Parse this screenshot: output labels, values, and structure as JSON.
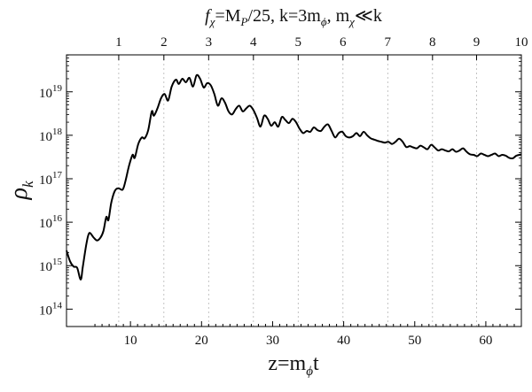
{
  "chart_data": {
    "type": "line",
    "top_title_parts": [
      "f",
      "χ",
      "=M",
      "P",
      "/25, k=3m",
      "ϕ",
      ", m",
      "χ",
      "≪k"
    ],
    "xlabel_parts": [
      "z=m",
      "ϕ",
      "t"
    ],
    "ylabel_parts": [
      "ρ",
      "k"
    ],
    "xlim": [
      1,
      65
    ],
    "ylim_log10": [
      13.6,
      19.85
    ],
    "x_ticks": [
      10,
      20,
      30,
      40,
      50,
      60
    ],
    "y_ticks": [
      {
        "exp": 14,
        "base": "10",
        "power": "14"
      },
      {
        "exp": 15,
        "base": "10",
        "power": "15"
      },
      {
        "exp": 16,
        "base": "10",
        "power": "16"
      },
      {
        "exp": 17,
        "base": "10",
        "power": "17"
      },
      {
        "exp": 18,
        "base": "10",
        "power": "18"
      },
      {
        "exp": 19,
        "base": "10",
        "power": "19"
      }
    ],
    "top_ticks": [
      {
        "label": "1",
        "z": 8.35
      },
      {
        "label": "2",
        "z": 14.7
      },
      {
        "label": "3",
        "z": 21.0
      },
      {
        "label": "4",
        "z": 27.3
      },
      {
        "label": "5",
        "z": 33.6
      },
      {
        "label": "6",
        "z": 39.9
      },
      {
        "label": "7",
        "z": 46.2
      },
      {
        "label": "8",
        "z": 52.5
      },
      {
        "label": "9",
        "z": 58.7
      },
      {
        "label": "10",
        "z": 65.0
      }
    ],
    "series": [
      {
        "color": "#000000",
        "points": [
          [
            1.0,
            15.35
          ],
          [
            1.5,
            15.1
          ],
          [
            2.0,
            14.98
          ],
          [
            2.5,
            14.95
          ],
          [
            3.0,
            14.68
          ],
          [
            3.3,
            14.98
          ],
          [
            3.8,
            15.5
          ],
          [
            4.2,
            15.75
          ],
          [
            4.8,
            15.65
          ],
          [
            5.3,
            15.58
          ],
          [
            5.8,
            15.65
          ],
          [
            6.2,
            15.8
          ],
          [
            6.6,
            16.12
          ],
          [
            6.9,
            16.05
          ],
          [
            7.3,
            16.45
          ],
          [
            7.8,
            16.72
          ],
          [
            8.3,
            16.78
          ],
          [
            8.9,
            16.75
          ],
          [
            9.3,
            16.95
          ],
          [
            9.8,
            17.3
          ],
          [
            10.3,
            17.55
          ],
          [
            10.6,
            17.48
          ],
          [
            11.1,
            17.8
          ],
          [
            11.6,
            17.95
          ],
          [
            12.0,
            17.93
          ],
          [
            12.5,
            18.12
          ],
          [
            13.0,
            18.55
          ],
          [
            13.3,
            18.45
          ],
          [
            13.8,
            18.62
          ],
          [
            14.3,
            18.85
          ],
          [
            14.8,
            18.95
          ],
          [
            15.3,
            18.8
          ],
          [
            15.8,
            19.12
          ],
          [
            16.4,
            19.28
          ],
          [
            16.8,
            19.18
          ],
          [
            17.3,
            19.3
          ],
          [
            17.8,
            19.22
          ],
          [
            18.3,
            19.32
          ],
          [
            18.8,
            19.12
          ],
          [
            19.3,
            19.38
          ],
          [
            19.8,
            19.3
          ],
          [
            20.3,
            19.1
          ],
          [
            20.8,
            19.2
          ],
          [
            21.3,
            19.15
          ],
          [
            21.8,
            18.95
          ],
          [
            22.3,
            18.68
          ],
          [
            22.8,
            18.85
          ],
          [
            23.3,
            18.75
          ],
          [
            23.8,
            18.55
          ],
          [
            24.3,
            18.48
          ],
          [
            24.8,
            18.6
          ],
          [
            25.3,
            18.68
          ],
          [
            25.8,
            18.55
          ],
          [
            26.3,
            18.62
          ],
          [
            26.8,
            18.68
          ],
          [
            27.3,
            18.58
          ],
          [
            27.8,
            18.4
          ],
          [
            28.3,
            18.2
          ],
          [
            28.8,
            18.45
          ],
          [
            29.3,
            18.38
          ],
          [
            29.8,
            18.22
          ],
          [
            30.3,
            18.3
          ],
          [
            30.8,
            18.2
          ],
          [
            31.3,
            18.42
          ],
          [
            31.8,
            18.35
          ],
          [
            32.3,
            18.28
          ],
          [
            32.8,
            18.38
          ],
          [
            33.3,
            18.3
          ],
          [
            33.8,
            18.15
          ],
          [
            34.3,
            18.05
          ],
          [
            34.8,
            18.1
          ],
          [
            35.3,
            18.08
          ],
          [
            35.8,
            18.18
          ],
          [
            36.3,
            18.12
          ],
          [
            36.8,
            18.1
          ],
          [
            37.3,
            18.2
          ],
          [
            37.8,
            18.25
          ],
          [
            38.3,
            18.1
          ],
          [
            38.8,
            17.95
          ],
          [
            39.3,
            18.05
          ],
          [
            39.8,
            18.08
          ],
          [
            40.3,
            17.98
          ],
          [
            40.8,
            17.95
          ],
          [
            41.3,
            17.98
          ],
          [
            41.8,
            18.05
          ],
          [
            42.3,
            17.98
          ],
          [
            42.8,
            18.08
          ],
          [
            43.3,
            18.0
          ],
          [
            43.8,
            17.93
          ],
          [
            44.3,
            17.9
          ],
          [
            44.8,
            17.87
          ],
          [
            45.3,
            17.85
          ],
          [
            45.8,
            17.83
          ],
          [
            46.3,
            17.85
          ],
          [
            46.8,
            17.8
          ],
          [
            47.3,
            17.85
          ],
          [
            47.8,
            17.92
          ],
          [
            48.3,
            17.85
          ],
          [
            48.8,
            17.73
          ],
          [
            49.3,
            17.75
          ],
          [
            49.8,
            17.72
          ],
          [
            50.3,
            17.7
          ],
          [
            50.8,
            17.76
          ],
          [
            51.3,
            17.72
          ],
          [
            51.8,
            17.68
          ],
          [
            52.3,
            17.78
          ],
          [
            52.8,
            17.72
          ],
          [
            53.3,
            17.65
          ],
          [
            53.8,
            17.68
          ],
          [
            54.3,
            17.65
          ],
          [
            54.8,
            17.63
          ],
          [
            55.3,
            17.68
          ],
          [
            55.8,
            17.62
          ],
          [
            56.3,
            17.65
          ],
          [
            56.8,
            17.7
          ],
          [
            57.3,
            17.62
          ],
          [
            57.8,
            17.56
          ],
          [
            58.3,
            17.55
          ],
          [
            58.8,
            17.52
          ],
          [
            59.3,
            17.58
          ],
          [
            59.8,
            17.55
          ],
          [
            60.3,
            17.52
          ],
          [
            60.8,
            17.55
          ],
          [
            61.3,
            17.58
          ],
          [
            61.8,
            17.52
          ],
          [
            62.3,
            17.55
          ],
          [
            62.8,
            17.53
          ],
          [
            63.3,
            17.48
          ],
          [
            63.8,
            17.47
          ],
          [
            64.3,
            17.53
          ],
          [
            65.0,
            17.56
          ]
        ]
      }
    ]
  }
}
